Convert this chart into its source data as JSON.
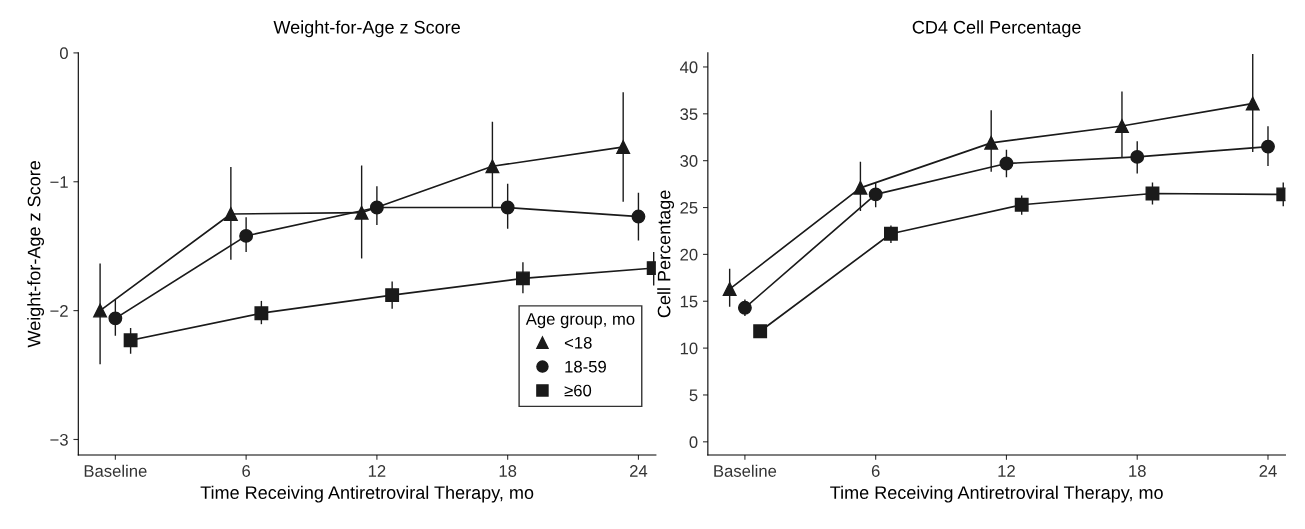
{
  "chart_data": [
    {
      "type": "line",
      "title": "Weight-for-Age z Score",
      "xlabel": "Time Receiving Antiretroviral Therapy, mo",
      "ylabel": "Weight-for-Age z Score",
      "xlim": [
        -1.7,
        24.8
      ],
      "xticks": [
        {
          "value": 0,
          "label": "Baseline"
        },
        6,
        12,
        18,
        24
      ],
      "ylim": [
        -3.12,
        0
      ],
      "yticks": [
        {
          "value": 0,
          "label": "0"
        },
        {
          "value": -1,
          "label": "−1"
        },
        {
          "value": -2,
          "label": "−2"
        },
        {
          "value": -3,
          "label": "−3"
        }
      ],
      "legend": "bottom right",
      "legend_title": "Age group, mo",
      "grid": false,
      "line_style": "solid",
      "series": [
        {
          "name": "<18",
          "color": "#1a1a1a",
          "marker": "triangle",
          "x": [
            -0.7,
            5.3,
            11.3,
            17.3,
            23.3
          ],
          "values": [
            -2.0,
            -1.25,
            -1.24,
            -0.88,
            -0.73
          ],
          "errors": [
            [
              -2.41,
              -1.64
            ],
            [
              -1.6,
              -0.89
            ],
            [
              -1.59,
              -0.88
            ],
            [
              -1.19,
              -0.54
            ],
            [
              -1.15,
              -0.31
            ]
          ]
        },
        {
          "name": "18-59",
          "color": "#1a1a1a",
          "marker": "circle",
          "x": [
            0,
            6,
            12,
            18,
            24
          ],
          "values": [
            -2.06,
            -1.42,
            -1.2,
            -1.2,
            -1.27
          ],
          "errors": [
            [
              -2.19,
              -1.92
            ],
            [
              -1.54,
              -1.28
            ],
            [
              -1.33,
              -1.04
            ],
            [
              -1.36,
              -1.02
            ],
            [
              -1.45,
              -1.09
            ]
          ]
        },
        {
          "name": "≥60",
          "color": "#1a1a1a",
          "marker": "square",
          "x": [
            0.7,
            6.7,
            12.7,
            18.7,
            24.7
          ],
          "values": [
            -2.23,
            -2.02,
            -1.88,
            -1.75,
            -1.67
          ],
          "errors": [
            [
              -2.33,
              -2.14
            ],
            [
              -2.1,
              -1.93
            ],
            [
              -1.98,
              -1.78
            ],
            [
              -1.86,
              -1.63
            ],
            [
              -1.8,
              -1.55
            ]
          ]
        }
      ]
    },
    {
      "type": "line",
      "title": "CD4 Cell Percentage",
      "xlabel": "Time Receiving Antiretroviral Therapy, mo",
      "ylabel": "Cell Percentage",
      "xlim": [
        -1.7,
        24.8
      ],
      "xticks": [
        {
          "value": 0,
          "label": "Baseline"
        },
        6,
        12,
        18,
        24
      ],
      "ylim": [
        -1.4,
        41.5
      ],
      "yticks": [
        0,
        5,
        10,
        15,
        20,
        25,
        30,
        35,
        40
      ],
      "grid": false,
      "line_style": "solid",
      "series": [
        {
          "color": "#1a1a1a",
          "marker": "triangle",
          "x": [
            -0.7,
            5.3,
            11.3,
            17.3,
            23.3
          ],
          "values": [
            16.3,
            27.1,
            31.9,
            33.7,
            36.1
          ],
          "errors": [
            [
              14.5,
              18.4
            ],
            [
              24.7,
              29.8
            ],
            [
              28.9,
              35.3
            ],
            [
              30.4,
              37.3
            ],
            [
              31.0,
              41.3
            ]
          ]
        },
        {
          "color": "#1a1a1a",
          "marker": "circle",
          "x": [
            0,
            6,
            12,
            18,
            24
          ],
          "values": [
            14.3,
            26.4,
            29.7,
            30.4,
            31.5
          ],
          "errors": [
            [
              13.5,
              15.1
            ],
            [
              25.1,
              27.6
            ],
            [
              28.3,
              31.1
            ],
            [
              28.7,
              32.0
            ],
            [
              29.5,
              33.6
            ]
          ]
        },
        {
          "color": "#1a1a1a",
          "marker": "square",
          "x": [
            0.7,
            6.7,
            12.7,
            18.7,
            24.7
          ],
          "values": [
            11.8,
            22.2,
            25.3,
            26.5,
            26.4
          ],
          "errors": [
            null,
            [
              21.3,
              23.0
            ],
            [
              24.3,
              26.2
            ],
            [
              25.4,
              27.6
            ],
            [
              25.2,
              27.6
            ]
          ]
        }
      ]
    }
  ]
}
